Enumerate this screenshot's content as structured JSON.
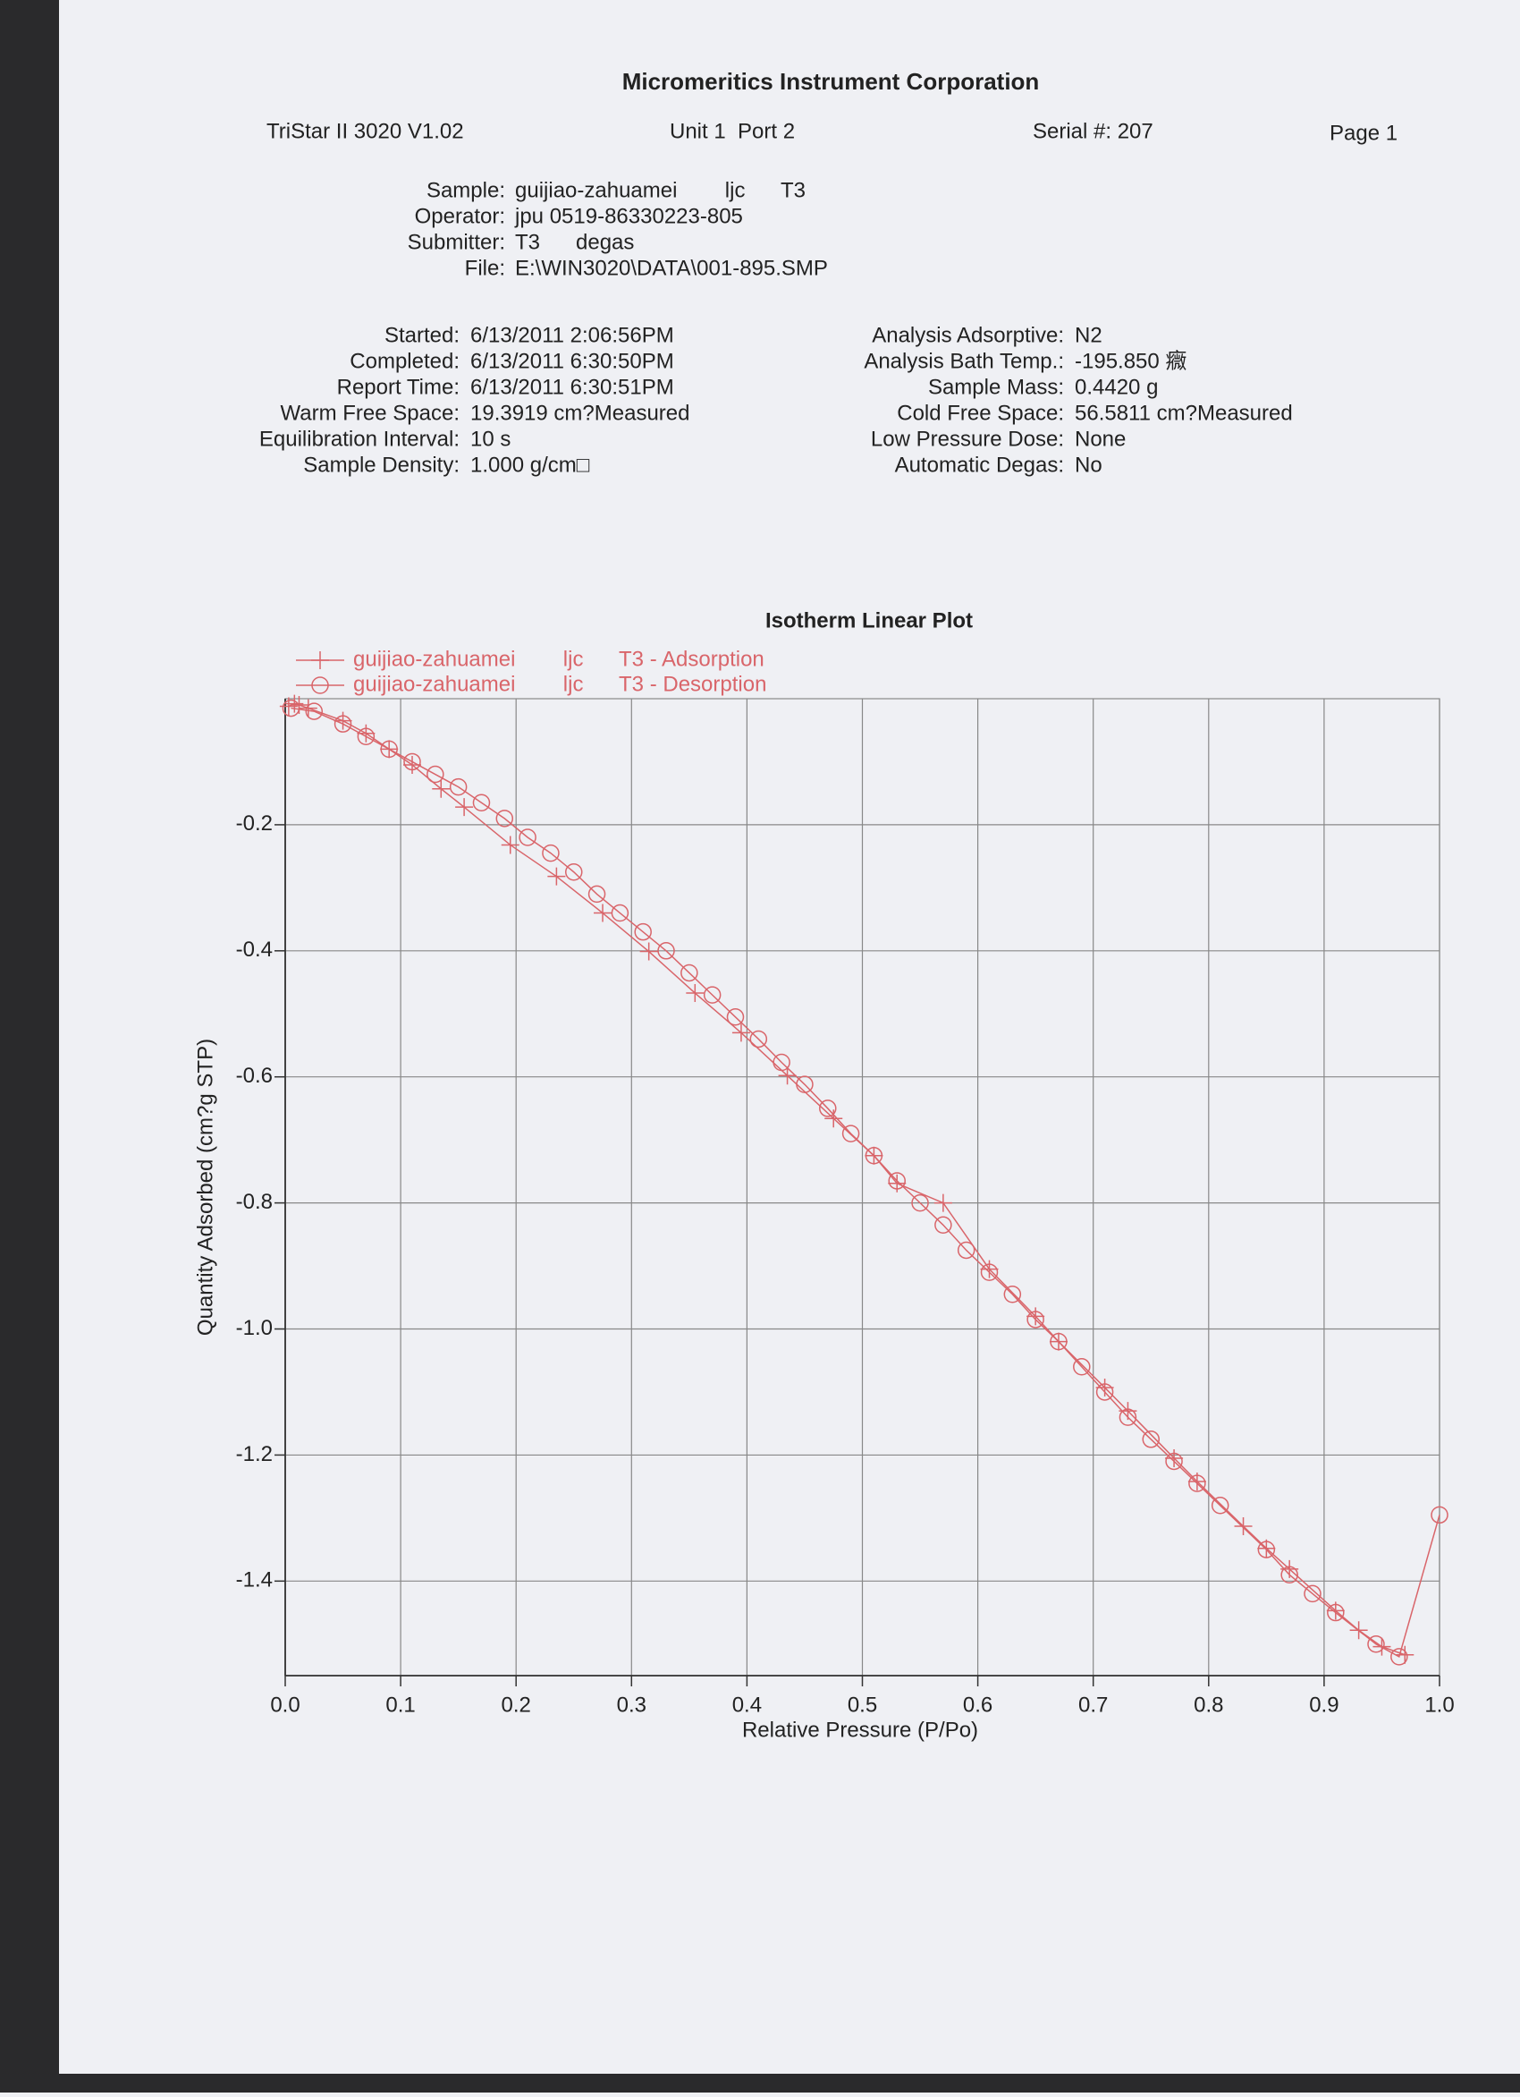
{
  "header": {
    "title": "Micromeritics Instrument Corporation",
    "instrument": "TriStar II 3020 V1.02",
    "unit": "Unit 1  Port 2",
    "serial": "Serial #: 207",
    "page": "Page 1"
  },
  "sample_info": [
    {
      "label": "Sample:",
      "value": "guijiao-zahuamei        ljc      T3"
    },
    {
      "label": "Operator:",
      "value": "jpu 0519-86330223-805"
    },
    {
      "label": "Submitter:",
      "value": "T3      degas"
    },
    {
      "label": "File:",
      "value": "E:\\WIN3020\\DATA\\001-895.SMP"
    }
  ],
  "analysis_left": [
    {
      "label": "Started:",
      "value": "6/13/2011 2:06:56PM"
    },
    {
      "label": "Completed:",
      "value": "6/13/2011 6:30:50PM"
    },
    {
      "label": "Report Time:",
      "value": "6/13/2011 6:30:51PM"
    },
    {
      "label": "Warm Free Space:",
      "value": "19.3919 cm?Measured"
    },
    {
      "label": "Equilibration Interval:",
      "value": "10 s"
    },
    {
      "label": "Sample Density:",
      "value": "1.000 g/cm□"
    }
  ],
  "analysis_right": [
    {
      "label": "Analysis Adsorptive:",
      "value": "N2"
    },
    {
      "label": "Analysis Bath Temp.:",
      "value": "-195.850 癓"
    },
    {
      "label": "Sample Mass:",
      "value": "0.4420 g"
    },
    {
      "label": "Cold Free Space:",
      "value": "56.5811 cm?Measured"
    },
    {
      "label": "Low Pressure Dose:",
      "value": "None"
    },
    {
      "label": "Automatic Degas:",
      "value": "No"
    }
  ],
  "chart_data": {
    "type": "scatter",
    "title": "Isotherm Linear Plot",
    "x_label": "Relative Pressure (P/Po)",
    "y_label": "Quantity Adsorbed (cm?g STP)",
    "xlim": [
      0,
      1
    ],
    "ylim": [
      -1.55,
      0
    ],
    "xticks": [
      {
        "value": 0,
        "label": "0.0"
      },
      0.1,
      0.2,
      0.3,
      0.4,
      0.5,
      0.6,
      0.7,
      0.8,
      0.9,
      {
        "value": 1,
        "label": "1.0"
      }
    ],
    "yticks": [
      -1.4,
      -1.2,
      {
        "value": -1,
        "label": "-1.0"
      },
      -0.8,
      -0.6,
      -0.4,
      -0.2
    ],
    "grid": true,
    "legend": "top-left",
    "series": [
      {
        "name": "guijiao-zahuamei        ljc      T3 - Adsorption",
        "color": "#d9656a",
        "marker": "plus",
        "x": [
          0.003,
          0.008,
          0.012,
          0.02,
          0.05,
          0.07,
          0.09,
          0.11,
          0.135,
          0.155,
          0.195,
          0.235,
          0.275,
          0.315,
          0.355,
          0.395,
          0.435,
          0.475,
          0.51,
          0.53,
          0.57,
          0.61,
          0.65,
          0.67,
          0.71,
          0.73,
          0.77,
          0.79,
          0.83,
          0.85,
          0.87,
          0.91,
          0.93,
          0.95,
          0.97
        ],
        "values": [
          -0.012,
          -0.008,
          -0.01,
          -0.015,
          -0.035,
          -0.055,
          -0.08,
          -0.105,
          -0.143,
          -0.172,
          -0.232,
          -0.282,
          -0.34,
          -0.401,
          -0.467,
          -0.53,
          -0.598,
          -0.666,
          -0.725,
          -0.769,
          -0.8,
          -0.905,
          -0.98,
          -1.02,
          -1.093,
          -1.13,
          -1.205,
          -1.242,
          -1.313,
          -1.348,
          -1.381,
          -1.447,
          -1.478,
          -1.504,
          -1.517
        ]
      },
      {
        "name": "guijiao-zahuamei        ljc      T3 - Desorption",
        "color": "#d9656a",
        "marker": "circle",
        "x": [
          1.0,
          0.965,
          0.945,
          0.91,
          0.89,
          0.87,
          0.85,
          0.81,
          0.79,
          0.77,
          0.75,
          0.73,
          0.71,
          0.69,
          0.67,
          0.65,
          0.63,
          0.61,
          0.59,
          0.57,
          0.55,
          0.53,
          0.51,
          0.49,
          0.47,
          0.45,
          0.43,
          0.41,
          0.39,
          0.37,
          0.35,
          0.33,
          0.31,
          0.29,
          0.27,
          0.25,
          0.23,
          0.21,
          0.19,
          0.17,
          0.15,
          0.13,
          0.11,
          0.09,
          0.07,
          0.05,
          0.025,
          0.005
        ],
        "values": [
          -1.295,
          -1.52,
          -1.5,
          -1.45,
          -1.42,
          -1.39,
          -1.35,
          -1.28,
          -1.245,
          -1.21,
          -1.175,
          -1.14,
          -1.1,
          -1.06,
          -1.02,
          -0.985,
          -0.945,
          -0.91,
          -0.875,
          -0.835,
          -0.8,
          -0.765,
          -0.725,
          -0.69,
          -0.65,
          -0.612,
          -0.577,
          -0.54,
          -0.505,
          -0.47,
          -0.435,
          -0.4,
          -0.37,
          -0.34,
          -0.31,
          -0.275,
          -0.245,
          -0.22,
          -0.19,
          -0.165,
          -0.14,
          -0.12,
          -0.1,
          -0.08,
          -0.06,
          -0.04,
          -0.02,
          -0.015
        ]
      }
    ]
  }
}
